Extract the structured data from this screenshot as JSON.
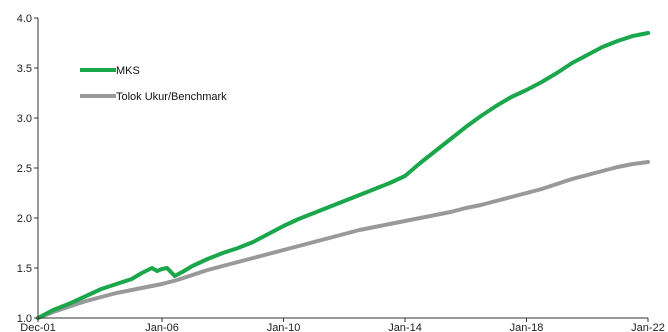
{
  "chart_data": {
    "type": "line",
    "xlim": [
      "2001-12",
      "2022-01"
    ],
    "ylim": [
      1.0,
      4.0
    ],
    "y_ticks": [
      "1.0",
      "1.5",
      "2.0",
      "2.5",
      "3.0",
      "3.5",
      "4.0"
    ],
    "x_ticks": [
      {
        "date": "2001-12",
        "label": "Dec-01"
      },
      {
        "date": "2006-01",
        "label": "Jan-06"
      },
      {
        "date": "2010-01",
        "label": "Jan-10"
      },
      {
        "date": "2014-01",
        "label": "Jan-14"
      },
      {
        "date": "2018-01",
        "label": "Jan-18"
      },
      {
        "date": "2022-01",
        "label": "Jan-22"
      }
    ],
    "grid": false,
    "legend_position": "top-left",
    "series": [
      {
        "name": "MKS",
        "color": "#1aa64a",
        "points": [
          [
            "2001-12",
            1.0
          ],
          [
            "2002-06",
            1.08
          ],
          [
            "2003-01",
            1.15
          ],
          [
            "2003-07",
            1.22
          ],
          [
            "2004-01",
            1.29
          ],
          [
            "2004-07",
            1.34
          ],
          [
            "2005-01",
            1.39
          ],
          [
            "2005-05",
            1.45
          ],
          [
            "2005-09",
            1.5
          ],
          [
            "2005-11",
            1.47
          ],
          [
            "2006-01",
            1.49
          ],
          [
            "2006-03",
            1.5
          ],
          [
            "2006-06",
            1.42
          ],
          [
            "2006-09",
            1.46
          ],
          [
            "2007-01",
            1.52
          ],
          [
            "2007-07",
            1.59
          ],
          [
            "2008-01",
            1.65
          ],
          [
            "2008-07",
            1.7
          ],
          [
            "2009-01",
            1.76
          ],
          [
            "2009-07",
            1.84
          ],
          [
            "2010-01",
            1.92
          ],
          [
            "2010-07",
            1.99
          ],
          [
            "2011-01",
            2.05
          ],
          [
            "2011-07",
            2.11
          ],
          [
            "2012-01",
            2.17
          ],
          [
            "2012-07",
            2.23
          ],
          [
            "2013-01",
            2.29
          ],
          [
            "2013-07",
            2.35
          ],
          [
            "2014-01",
            2.42
          ],
          [
            "2014-07",
            2.55
          ],
          [
            "2015-01",
            2.67
          ],
          [
            "2015-07",
            2.79
          ],
          [
            "2016-01",
            2.91
          ],
          [
            "2016-07",
            3.02
          ],
          [
            "2017-01",
            3.12
          ],
          [
            "2017-07",
            3.21
          ],
          [
            "2018-01",
            3.28
          ],
          [
            "2018-07",
            3.36
          ],
          [
            "2019-01",
            3.45
          ],
          [
            "2019-07",
            3.55
          ],
          [
            "2020-01",
            3.63
          ],
          [
            "2020-07",
            3.71
          ],
          [
            "2021-01",
            3.77
          ],
          [
            "2021-07",
            3.82
          ],
          [
            "2022-01",
            3.85
          ]
        ]
      },
      {
        "name": "Tolok Ukur/Benchmark",
        "color": "#999999",
        "points": [
          [
            "2001-12",
            1.0
          ],
          [
            "2002-06",
            1.06
          ],
          [
            "2003-01",
            1.12
          ],
          [
            "2003-07",
            1.17
          ],
          [
            "2004-01",
            1.21
          ],
          [
            "2004-07",
            1.25
          ],
          [
            "2005-01",
            1.28
          ],
          [
            "2005-07",
            1.31
          ],
          [
            "2006-01",
            1.34
          ],
          [
            "2006-07",
            1.38
          ],
          [
            "2007-01",
            1.43
          ],
          [
            "2007-07",
            1.48
          ],
          [
            "2008-01",
            1.52
          ],
          [
            "2008-07",
            1.56
          ],
          [
            "2009-01",
            1.6
          ],
          [
            "2009-07",
            1.64
          ],
          [
            "2010-01",
            1.68
          ],
          [
            "2010-07",
            1.72
          ],
          [
            "2011-01",
            1.76
          ],
          [
            "2011-07",
            1.8
          ],
          [
            "2012-01",
            1.84
          ],
          [
            "2012-07",
            1.88
          ],
          [
            "2013-01",
            1.91
          ],
          [
            "2013-07",
            1.94
          ],
          [
            "2014-01",
            1.97
          ],
          [
            "2014-07",
            2.0
          ],
          [
            "2015-01",
            2.03
          ],
          [
            "2015-07",
            2.06
          ],
          [
            "2016-01",
            2.1
          ],
          [
            "2016-07",
            2.13
          ],
          [
            "2017-01",
            2.17
          ],
          [
            "2017-07",
            2.21
          ],
          [
            "2018-01",
            2.25
          ],
          [
            "2018-07",
            2.29
          ],
          [
            "2019-01",
            2.34
          ],
          [
            "2019-07",
            2.39
          ],
          [
            "2020-01",
            2.43
          ],
          [
            "2020-07",
            2.47
          ],
          [
            "2021-01",
            2.51
          ],
          [
            "2021-07",
            2.54
          ],
          [
            "2022-01",
            2.56
          ]
        ]
      }
    ]
  }
}
